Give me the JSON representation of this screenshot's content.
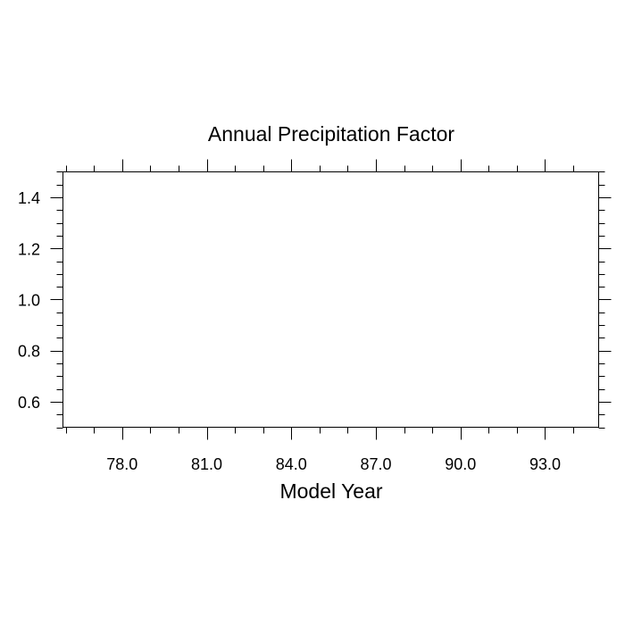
{
  "chart_data": {
    "type": "line",
    "title": "Annual Precipitation Factor",
    "xlabel": "Model Year",
    "ylabel": "",
    "xlim": [
      75.9,
      94.9
    ],
    "ylim": [
      0.5,
      1.5
    ],
    "x_major_ticks": [
      78.0,
      81.0,
      84.0,
      87.0,
      90.0,
      93.0
    ],
    "x_tick_labels": [
      "78.0",
      "81.0",
      "84.0",
      "87.0",
      "90.0",
      "93.0"
    ],
    "x_minor_step": 1.0,
    "y_major_ticks": [
      0.6,
      0.8,
      1.0,
      1.2,
      1.4
    ],
    "y_tick_labels": [
      "0.6",
      "0.8",
      "1.0",
      "1.2",
      "1.4"
    ],
    "y_minor_step": 0.05,
    "grid": false,
    "series": []
  }
}
